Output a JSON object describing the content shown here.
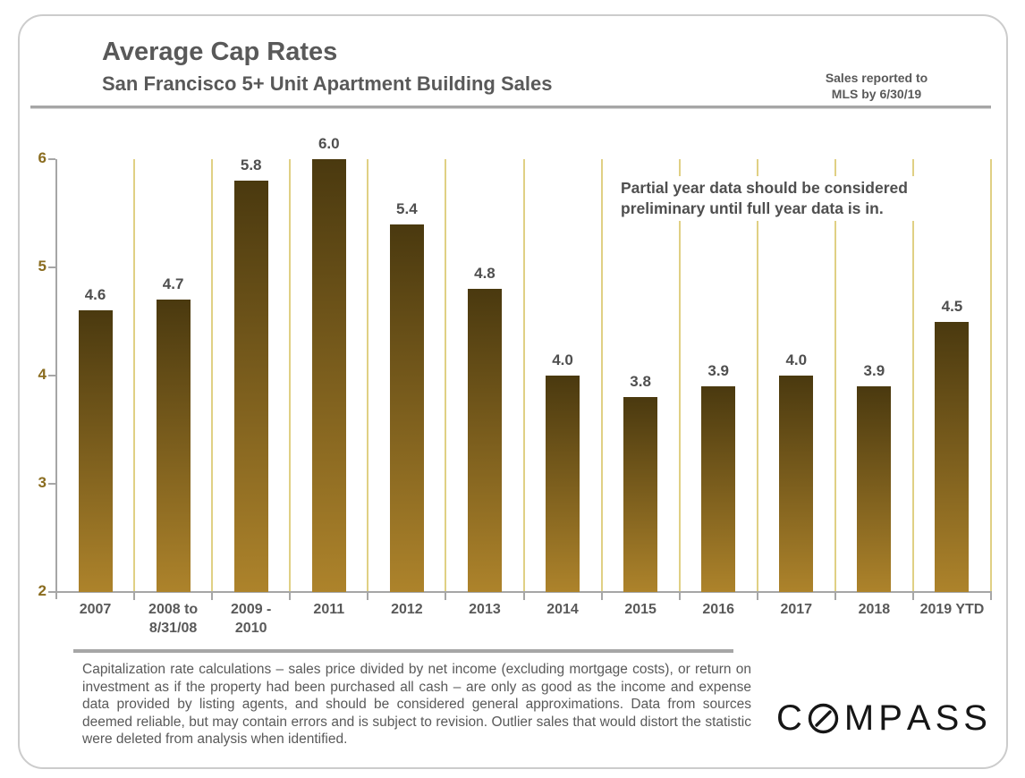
{
  "header": {
    "title": "Average Cap Rates",
    "subtitle": "San Francisco 5+ Unit Apartment Building Sales",
    "note": "Sales reported to\nMLS by 6/30/19"
  },
  "chart_data": {
    "type": "bar",
    "title": "Average Cap Rates",
    "subtitle": "San Francisco 5+ Unit Apartment Building Sales",
    "categories": [
      "2007",
      "2008 to\n8/31/08",
      "2009 -\n2010",
      "2011",
      "2012",
      "2013",
      "2014",
      "2015",
      "2016",
      "2017",
      "2018",
      "2019 YTD"
    ],
    "values": [
      4.6,
      4.7,
      5.8,
      6.0,
      5.4,
      4.8,
      4.0,
      3.8,
      3.9,
      4.0,
      3.9,
      4.5
    ],
    "ylabel": "",
    "xlabel": "",
    "ylim": [
      2,
      6
    ],
    "yticks": [
      2,
      3,
      4,
      5,
      6
    ],
    "grid": "vertical category separator lines, no horizontal gridlines",
    "legend": "none",
    "annotation": "Partial year data should be considered\npreliminary until full year data is in."
  },
  "colors": {
    "text_gray": "#595959",
    "axis_gray": "#a6a6a6",
    "gridline_gold": "#e0d084",
    "ytick_label_gold": "#8a6c1f",
    "bar_gradient_top": "#4a390f",
    "bar_gradient_bottom": "#ad832b",
    "brand_black": "#161616"
  },
  "footer": {
    "disclaimer": "Capitalization rate calculations – sales price divided by net income (excluding mortgage costs), or return on investment as if the property had been purchased all cash – are only as good as the income and expense data provided by listing agents, and should be considered general approximations. Data from sources deemed reliable, but may contain errors and is subject to revision. Outlier sales that would distort the statistic were deleted from analysis when identified.",
    "brand": "COMPASS"
  }
}
